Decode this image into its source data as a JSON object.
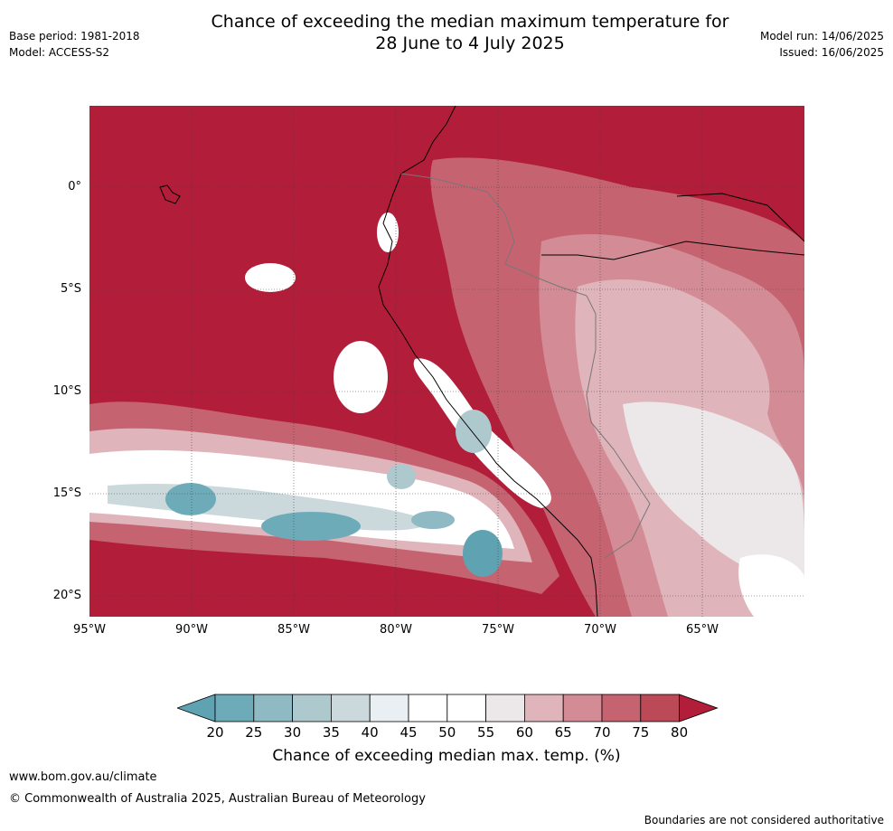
{
  "header": {
    "title_line1": "Chance of exceeding the median maximum temperature for",
    "title_line2": "28 June to 4 July 2025",
    "base_period": "Base period: 1981-2018",
    "model": "Model: ACCESS-S2",
    "model_run": "Model run: 14/06/2025",
    "issued": "Issued: 16/06/2025"
  },
  "map": {
    "region": "western South America and eastern Pacific",
    "lat_labels": [
      "0°",
      "5°S",
      "10°S",
      "15°S",
      "20°S"
    ],
    "lon_labels": [
      "95°W",
      "90°W",
      "85°W",
      "80°W",
      "75°W",
      "70°W",
      "65°W"
    ],
    "lon_range": [
      -95,
      -60
    ],
    "lat_range": [
      -21,
      4
    ],
    "gridlines": true
  },
  "colorbar": {
    "label": "Chance of exceeding median max. temp. (%)",
    "ticks": [
      "20",
      "25",
      "30",
      "35",
      "40",
      "45",
      "50",
      "55",
      "60",
      "65",
      "70",
      "75",
      "80"
    ],
    "colors": [
      "#5fa3b3",
      "#6eabb9",
      "#8fbac4",
      "#adc9ce",
      "#ccd9dc",
      "#e9eff2",
      "#ffffff",
      "#ffffff",
      "#ece8e9",
      "#e0b4bb",
      "#d38c96",
      "#c66370",
      "#bb4956",
      "#b21d39"
    ]
  },
  "footer": {
    "url": "www.bom.gov.au/climate",
    "copyright": "© Commonwealth of Australia 2025, Australian Bureau of Meteorology",
    "note": "Boundaries are not considered authoritative"
  }
}
